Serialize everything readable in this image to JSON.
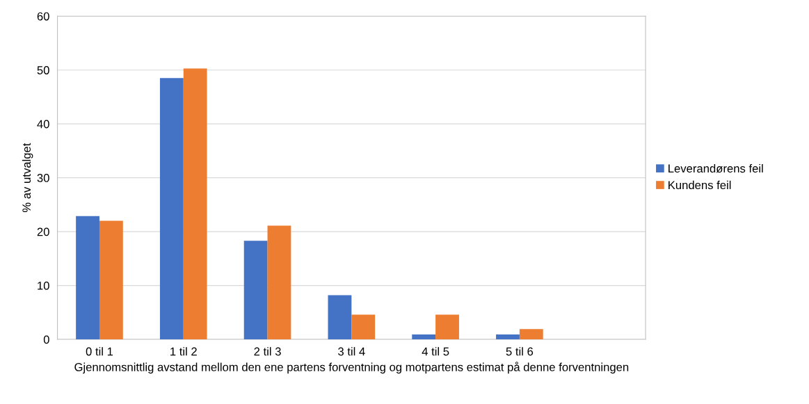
{
  "chart_data": {
    "type": "bar",
    "xlabel": "Gjennomsnittlig avstand mellom den ene partens forventning og motpartens estimat på denne forventningen",
    "ylabel": "% av utvalget",
    "categories": [
      "0 til 1",
      "1 til 2",
      "2 til 3",
      "3 til 4",
      "4 til 5",
      "5 til 6",
      null
    ],
    "series": [
      {
        "name": "Leverandørens feil",
        "color": "#4472c4",
        "values": [
          22.9,
          48.5,
          18.3,
          8.2,
          0.9,
          0.9,
          null
        ]
      },
      {
        "name": "Kundens feil",
        "color": "#ed7d31",
        "values": [
          22.0,
          50.3,
          21.1,
          4.6,
          4.6,
          1.9,
          null
        ]
      }
    ],
    "ylim": [
      0,
      60
    ],
    "yticks": [
      0,
      10,
      20,
      30,
      40,
      50,
      60
    ],
    "grid": "y",
    "legend": "right"
  }
}
